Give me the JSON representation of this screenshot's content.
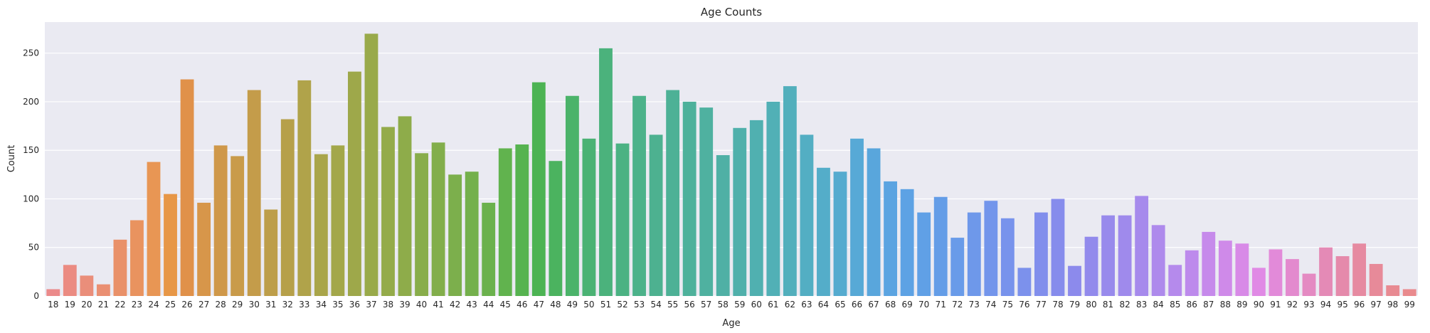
{
  "chart_data": {
    "type": "bar",
    "title": "Age Counts",
    "xlabel": "Age",
    "ylabel": "Count",
    "ylim": [
      0,
      282
    ],
    "yticks": [
      0,
      50,
      100,
      150,
      200,
      250
    ],
    "grid": true,
    "categories": [
      "18",
      "19",
      "20",
      "21",
      "22",
      "23",
      "24",
      "25",
      "26",
      "27",
      "28",
      "29",
      "30",
      "31",
      "32",
      "33",
      "34",
      "35",
      "36",
      "37",
      "38",
      "39",
      "40",
      "41",
      "42",
      "43",
      "44",
      "45",
      "46",
      "47",
      "48",
      "49",
      "50",
      "51",
      "52",
      "53",
      "54",
      "55",
      "56",
      "57",
      "58",
      "59",
      "60",
      "61",
      "62",
      "63",
      "64",
      "65",
      "66",
      "67",
      "68",
      "69",
      "70",
      "71",
      "72",
      "73",
      "74",
      "75",
      "76",
      "77",
      "78",
      "79",
      "80",
      "81",
      "82",
      "83",
      "84",
      "85",
      "86",
      "87",
      "88",
      "89",
      "90",
      "91",
      "92",
      "93",
      "94",
      "95",
      "96",
      "97",
      "98",
      "99"
    ],
    "values": [
      7,
      32,
      21,
      12,
      58,
      78,
      138,
      105,
      223,
      96,
      155,
      144,
      212,
      89,
      182,
      222,
      146,
      155,
      231,
      270,
      174,
      185,
      147,
      158,
      125,
      128,
      96,
      152,
      156,
      220,
      139,
      206,
      162,
      255,
      157,
      206,
      166,
      212,
      200,
      194,
      145,
      173,
      181,
      200,
      216,
      166,
      132,
      128,
      162,
      152,
      118,
      110,
      86,
      102,
      60,
      86,
      98,
      80,
      29,
      86,
      100,
      31,
      61,
      83,
      83,
      103,
      73,
      32,
      47,
      66,
      57,
      54,
      29,
      48,
      38,
      23,
      50,
      41,
      54,
      33,
      11,
      7
    ],
    "colors": [
      "#eb8a8a",
      "#eb8b82",
      "#ea8e7a",
      "#ea8f72",
      "#e99169",
      "#e9935f",
      "#e89654",
      "#e79747",
      "#e0914a",
      "#d7964a",
      "#cf984a",
      "#c99b4a",
      "#c49c4a",
      "#bd9e4a",
      "#b6a04a",
      "#b0a34a",
      "#a9a54a",
      "#a3a74a",
      "#9ea84a",
      "#99aa4a",
      "#94ab4a",
      "#8eac4a",
      "#88ad4b",
      "#82ae4b",
      "#7caf4c",
      "#74b04c",
      "#6bb14d",
      "#61b34e",
      "#56b350",
      "#4cb353",
      "#4bb35f",
      "#4bb36a",
      "#4bb274",
      "#4bb27c",
      "#4bb283",
      "#4cb28a",
      "#4db190",
      "#4db196",
      "#4eb19b",
      "#4fb1a0",
      "#4fb0a5",
      "#50b0ab",
      "#50b0b0",
      "#51b0b6",
      "#52afbc",
      "#53aec3",
      "#54adc9",
      "#55abcf",
      "#57a9d6",
      "#59a6dc",
      "#5ba4e1",
      "#5da2e4",
      "#60a0e6",
      "#649de7",
      "#699be9",
      "#6e98ea",
      "#7395eb",
      "#7893ec",
      "#7c91ec",
      "#818eec",
      "#868cec",
      "#8c8aec",
      "#928aec",
      "#988aec",
      "#9f8aec",
      "#a68aec",
      "#ae8aec",
      "#b58aec",
      "#bd8aec",
      "#c68aeb",
      "#cf8ae9",
      "#d88ae7",
      "#e08ae5",
      "#e28ad9",
      "#e38ace",
      "#e48ac2",
      "#e48ab6",
      "#e58aab",
      "#e68aa1",
      "#e78a99",
      "#e88a92",
      "#e98a8d"
    ]
  }
}
